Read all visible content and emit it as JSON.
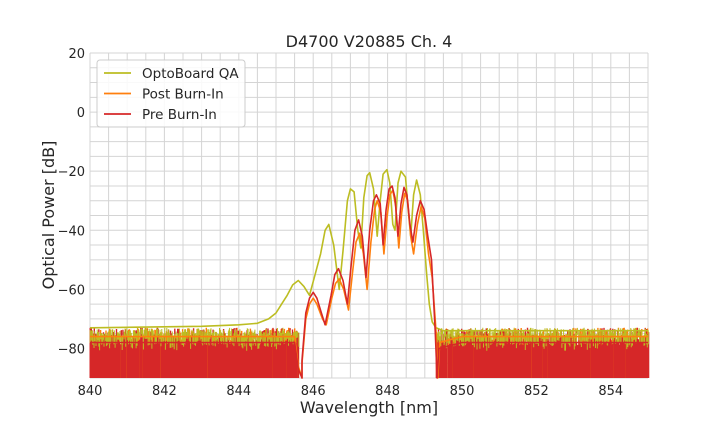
{
  "chart_data": {
    "type": "line",
    "title": "D4700 V20885 Ch. 4",
    "xlabel": "Wavelength [nm]",
    "ylabel": "Optical Power [dB]",
    "xlim": [
      840,
      855
    ],
    "ylim": [
      -90,
      20
    ],
    "x_ticks": [
      840,
      842,
      844,
      846,
      848,
      850,
      852,
      854
    ],
    "y_ticks": [
      20,
      0,
      -20,
      -40,
      -60,
      -80
    ],
    "x_minor_step": 0.5,
    "y_minor_step": 5,
    "grid": true,
    "legend_position": "top-left",
    "noise_floor": {
      "band": [
        -90,
        -73
      ],
      "left_end": 845.6,
      "right_start": 849.3
    },
    "series": [
      {
        "name": "OptoBoard QA",
        "color": "#bcbd22",
        "points": [
          [
            840.0,
            -73
          ],
          [
            843.0,
            -72.5
          ],
          [
            844.0,
            -72
          ],
          [
            844.5,
            -71.5
          ],
          [
            844.8,
            -70
          ],
          [
            845.0,
            -68
          ],
          [
            845.15,
            -65
          ],
          [
            845.3,
            -62
          ],
          [
            845.45,
            -58.5
          ],
          [
            845.6,
            -57
          ],
          [
            845.75,
            -59
          ],
          [
            845.9,
            -62
          ],
          [
            846.05,
            -55
          ],
          [
            846.2,
            -48
          ],
          [
            846.32,
            -40
          ],
          [
            846.42,
            -38
          ],
          [
            846.55,
            -45
          ],
          [
            846.7,
            -60
          ],
          [
            846.8,
            -47
          ],
          [
            846.92,
            -30
          ],
          [
            847.0,
            -26
          ],
          [
            847.1,
            -27
          ],
          [
            847.2,
            -40
          ],
          [
            847.28,
            -46
          ],
          [
            847.36,
            -29
          ],
          [
            847.45,
            -21.5
          ],
          [
            847.52,
            -20.5
          ],
          [
            847.62,
            -26
          ],
          [
            847.72,
            -42
          ],
          [
            847.8,
            -30
          ],
          [
            847.88,
            -21
          ],
          [
            847.98,
            -19.5
          ],
          [
            848.06,
            -24
          ],
          [
            848.14,
            -38
          ],
          [
            848.2,
            -40
          ],
          [
            848.28,
            -24
          ],
          [
            848.36,
            -20
          ],
          [
            848.48,
            -22
          ],
          [
            848.56,
            -34
          ],
          [
            848.62,
            -42
          ],
          [
            848.7,
            -28
          ],
          [
            848.78,
            -23
          ],
          [
            848.88,
            -28
          ],
          [
            848.96,
            -40
          ],
          [
            849.05,
            -55
          ],
          [
            849.12,
            -65
          ],
          [
            849.2,
            -71
          ],
          [
            849.3,
            -73
          ],
          [
            849.5,
            -74
          ],
          [
            852.0,
            -74
          ],
          [
            855.0,
            -74
          ]
        ]
      },
      {
        "name": "Post Burn-In",
        "color": "#ff7f0e",
        "points": [
          [
            840.0,
            -76
          ],
          [
            844.5,
            -76
          ],
          [
            845.5,
            -76
          ],
          [
            845.6,
            -86
          ],
          [
            845.7,
            -90
          ],
          [
            845.7,
            -85
          ],
          [
            845.8,
            -70
          ],
          [
            845.9,
            -65
          ],
          [
            846.0,
            -63
          ],
          [
            846.1,
            -65
          ],
          [
            846.25,
            -70
          ],
          [
            846.35,
            -72
          ],
          [
            846.5,
            -63
          ],
          [
            846.6,
            -58
          ],
          [
            846.7,
            -56.5
          ],
          [
            846.82,
            -60
          ],
          [
            846.95,
            -67
          ],
          [
            847.05,
            -55
          ],
          [
            847.15,
            -44
          ],
          [
            847.25,
            -41
          ],
          [
            847.35,
            -48
          ],
          [
            847.45,
            -60
          ],
          [
            847.55,
            -44
          ],
          [
            847.65,
            -33
          ],
          [
            847.72,
            -30
          ],
          [
            847.82,
            -34
          ],
          [
            847.9,
            -48
          ],
          [
            847.98,
            -36
          ],
          [
            848.06,
            -28
          ],
          [
            848.14,
            -26.5
          ],
          [
            848.22,
            -32
          ],
          [
            848.3,
            -46
          ],
          [
            848.38,
            -34
          ],
          [
            848.46,
            -27.5
          ],
          [
            848.54,
            -30
          ],
          [
            848.62,
            -42
          ],
          [
            848.7,
            -48
          ],
          [
            848.8,
            -38
          ],
          [
            848.9,
            -32
          ],
          [
            849.0,
            -36
          ],
          [
            849.1,
            -48
          ],
          [
            849.2,
            -56
          ],
          [
            849.3,
            -74
          ],
          [
            849.35,
            -90
          ],
          [
            849.4,
            -78
          ],
          [
            850.0,
            -76
          ],
          [
            855.0,
            -76
          ]
        ]
      },
      {
        "name": "Pre Burn-In",
        "color": "#d62728",
        "points": [
          [
            840.0,
            -78
          ],
          [
            844.5,
            -78
          ],
          [
            845.5,
            -78
          ],
          [
            845.6,
            -87
          ],
          [
            845.7,
            -90
          ],
          [
            845.7,
            -84
          ],
          [
            845.8,
            -68
          ],
          [
            845.9,
            -63
          ],
          [
            846.0,
            -61
          ],
          [
            846.1,
            -63
          ],
          [
            846.22,
            -68
          ],
          [
            846.32,
            -72
          ],
          [
            846.48,
            -62
          ],
          [
            846.58,
            -55
          ],
          [
            846.68,
            -53
          ],
          [
            846.8,
            -57
          ],
          [
            846.92,
            -65
          ],
          [
            847.02,
            -52
          ],
          [
            847.12,
            -40
          ],
          [
            847.22,
            -36.5
          ],
          [
            847.32,
            -42
          ],
          [
            847.42,
            -56
          ],
          [
            847.52,
            -40
          ],
          [
            847.62,
            -30
          ],
          [
            847.7,
            -28
          ],
          [
            847.8,
            -31
          ],
          [
            847.88,
            -45
          ],
          [
            847.96,
            -33
          ],
          [
            848.04,
            -26
          ],
          [
            848.12,
            -25
          ],
          [
            848.2,
            -29
          ],
          [
            848.28,
            -42
          ],
          [
            848.36,
            -31
          ],
          [
            848.44,
            -25.5
          ],
          [
            848.52,
            -28
          ],
          [
            848.6,
            -38
          ],
          [
            848.68,
            -44
          ],
          [
            848.78,
            -35
          ],
          [
            848.88,
            -30
          ],
          [
            848.98,
            -33
          ],
          [
            849.08,
            -42
          ],
          [
            849.18,
            -50
          ],
          [
            849.28,
            -74
          ],
          [
            849.33,
            -90
          ],
          [
            849.38,
            -80
          ],
          [
            850.0,
            -78
          ],
          [
            855.0,
            -78
          ]
        ]
      }
    ]
  }
}
